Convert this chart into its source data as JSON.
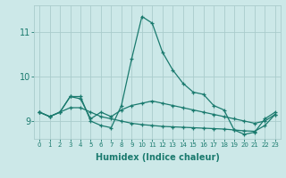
{
  "title": "",
  "xlabel": "Humidex (Indice chaleur)",
  "ylabel": "",
  "background_color": "#cce8e8",
  "grid_color": "#aacccc",
  "line_color": "#1a7a6e",
  "x_ticks": [
    0,
    1,
    2,
    3,
    4,
    5,
    6,
    7,
    8,
    9,
    10,
    11,
    12,
    13,
    14,
    15,
    16,
    17,
    18,
    19,
    20,
    21,
    22,
    23
  ],
  "y_ticks": [
    9,
    10,
    11
  ],
  "ylim": [
    8.6,
    11.6
  ],
  "xlim": [
    -0.5,
    23.5
  ],
  "series": [
    [
      9.2,
      9.1,
      9.2,
      9.55,
      9.55,
      9.0,
      8.9,
      8.85,
      9.35,
      10.4,
      11.35,
      11.2,
      10.55,
      10.15,
      9.85,
      9.65,
      9.6,
      9.35,
      9.25,
      8.8,
      8.7,
      8.75,
      9.05,
      9.2
    ],
    [
      9.2,
      9.1,
      9.2,
      9.55,
      9.5,
      9.05,
      9.2,
      9.1,
      9.25,
      9.35,
      9.4,
      9.45,
      9.4,
      9.35,
      9.3,
      9.25,
      9.2,
      9.15,
      9.1,
      9.05,
      9.0,
      8.95,
      9.0,
      9.15
    ],
    [
      9.2,
      9.1,
      9.2,
      9.3,
      9.3,
      9.2,
      9.1,
      9.05,
      9.0,
      8.95,
      8.92,
      8.9,
      8.88,
      8.87,
      8.86,
      8.85,
      8.84,
      8.83,
      8.82,
      8.8,
      8.78,
      8.77,
      8.9,
      9.15
    ]
  ],
  "xlabel_fontsize": 7,
  "ytick_fontsize": 7,
  "xtick_fontsize": 5
}
